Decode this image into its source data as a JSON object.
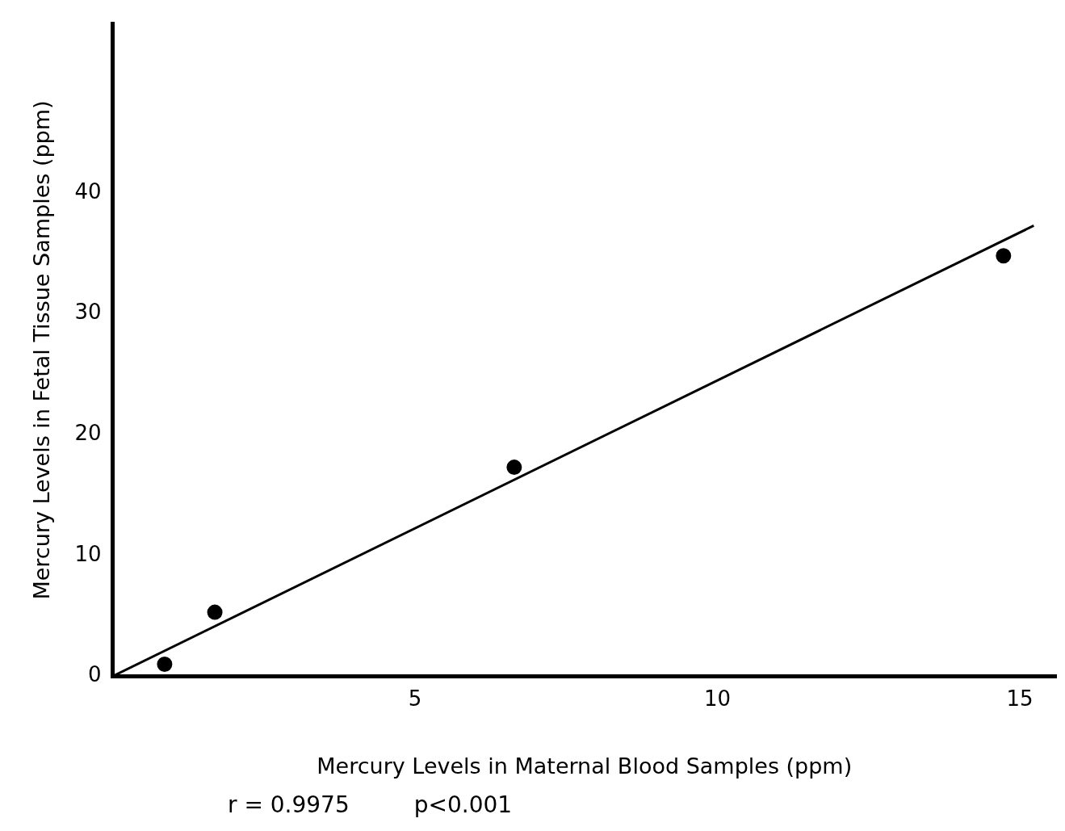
{
  "chart_data": {
    "type": "scatter",
    "xlabel": "Mercury Levels in Maternal Blood Samples (ppm)",
    "ylabel": "Mercury Levels in Fetal Tissue Samples (ppm)",
    "xlim": [
      0,
      15.6
    ],
    "xticks": [
      5,
      10,
      15
    ],
    "ylim": [
      0,
      54
    ],
    "yticks": [
      0,
      10,
      20,
      30,
      40
    ],
    "grid": false,
    "series": [
      {
        "x": [
          0.86,
          1.69,
          6.64,
          14.73
        ],
        "values": [
          1.0,
          5.3,
          17.3,
          34.8
        ],
        "color": "#000000",
        "marker": "circle"
      },
      {
        "type": "line",
        "x": [
          0,
          15.23
        ],
        "values": [
          0,
          37.3
        ],
        "color": "#000000",
        "marker": "none",
        "line_style": "solid"
      }
    ],
    "annotations": [
      "r = 0.9975",
      "p<0.001"
    ]
  }
}
